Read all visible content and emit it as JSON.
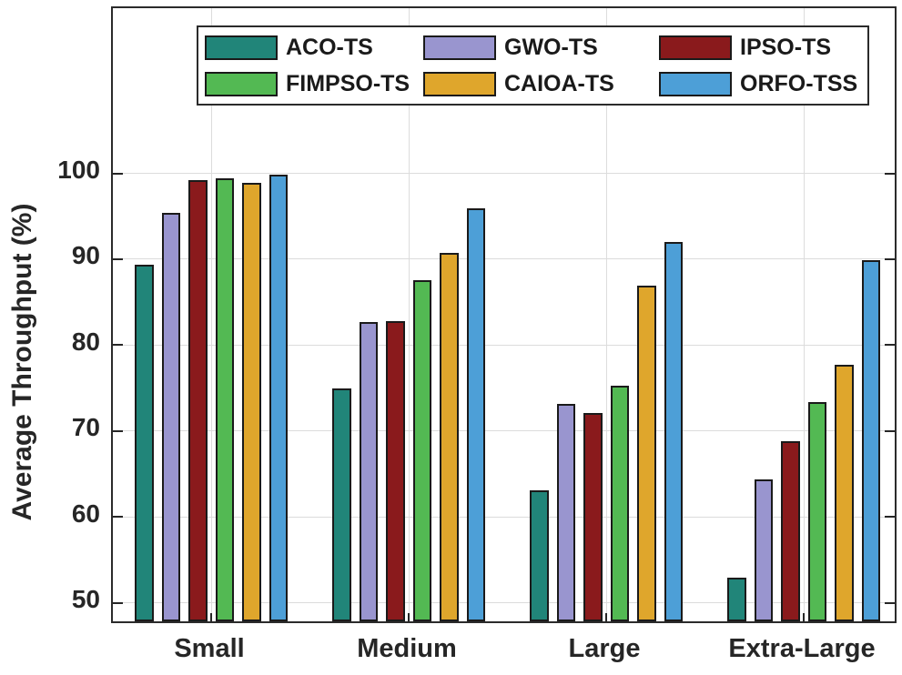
{
  "chart_data": {
    "type": "bar",
    "title": "",
    "xlabel": "",
    "ylabel": "Average Throughput (%)",
    "categories": [
      "Small",
      "Medium",
      "Large",
      "Extra-Large"
    ],
    "series": [
      {
        "name": "ACO-TS",
        "color": "#218579",
        "values": [
          89.3,
          74.9,
          63.0,
          52.9
        ]
      },
      {
        "name": "GWO-TS",
        "color": "#9995cf",
        "values": [
          95.3,
          82.6,
          73.1,
          64.3
        ]
      },
      {
        "name": "IPSO-TS",
        "color": "#8a1a1c",
        "values": [
          99.2,
          82.7,
          72.0,
          68.8
        ]
      },
      {
        "name": "FIMPSO-TS",
        "color": "#53b953",
        "values": [
          99.4,
          87.5,
          75.2,
          73.3
        ]
      },
      {
        "name": "CAIOA-TS",
        "color": "#dfa62c",
        "values": [
          98.8,
          90.7,
          86.9,
          77.6
        ]
      },
      {
        "name": "ORFO-TSS",
        "color": "#4d9fd7",
        "values": [
          99.8,
          95.9,
          92.0,
          89.8
        ]
      }
    ],
    "legend_rows": [
      [
        "ACO-TS",
        "GWO-TS",
        "IPSO-TS"
      ],
      [
        "FIMPSO-TS",
        "CAIOA-TS",
        "ORFO-TSS"
      ]
    ],
    "legend_position": "top-center-inside",
    "yticks": [
      50,
      60,
      70,
      80,
      90,
      100
    ],
    "ylim": [
      47.5,
      119.4
    ],
    "grid": true,
    "axis_color": "#262626",
    "grid_color": "#dcdcdc",
    "bar_edge_color": "#1a1a1a"
  }
}
